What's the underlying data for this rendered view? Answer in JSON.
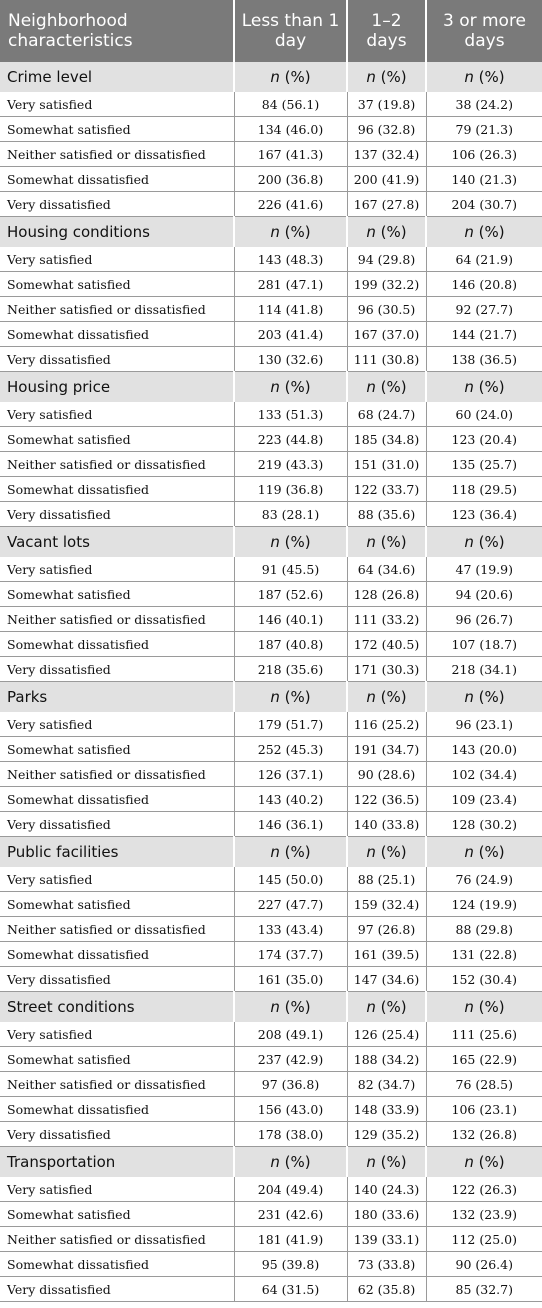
{
  "header": {
    "col0": "Neighborhood characteristics",
    "col1": "Less than 1 day",
    "col2": "1–2 days",
    "col3": "3 or more days"
  },
  "subheader": {
    "n": "n",
    "pct": " (%)"
  },
  "sections": [
    {
      "title": "Crime level",
      "rows": [
        {
          "label": "Very satisfied",
          "v1": "84 (56.1)",
          "v2": "37 (19.8)",
          "v3": "38 (24.2)"
        },
        {
          "label": "Somewhat satisfied",
          "v1": "134 (46.0)",
          "v2": "96 (32.8)",
          "v3": "79 (21.3)"
        },
        {
          "label": "Neither satisfied or dissatisfied",
          "v1": "167 (41.3)",
          "v2": "137 (32.4)",
          "v3": "106 (26.3)"
        },
        {
          "label": "Somewhat dissatisfied",
          "v1": "200 (36.8)",
          "v2": "200 (41.9)",
          "v3": "140 (21.3)"
        },
        {
          "label": "Very dissatisfied",
          "v1": "226 (41.6)",
          "v2": "167 (27.8)",
          "v3": "204 (30.7)"
        }
      ]
    },
    {
      "title": "Housing conditions",
      "rows": [
        {
          "label": "Very satisfied",
          "v1": "143 (48.3)",
          "v2": "94 (29.8)",
          "v3": "64 (21.9)"
        },
        {
          "label": "Somewhat satisfied",
          "v1": "281 (47.1)",
          "v2": "199 (32.2)",
          "v3": "146 (20.8)"
        },
        {
          "label": "Neither satisfied or dissatisfied",
          "v1": "114 (41.8)",
          "v2": "96 (30.5)",
          "v3": "92 (27.7)"
        },
        {
          "label": "Somewhat dissatisfied",
          "v1": "203 (41.4)",
          "v2": "167 (37.0)",
          "v3": "144 (21.7)"
        },
        {
          "label": "Very dissatisfied",
          "v1": "130 (32.6)",
          "v2": "111 (30.8)",
          "v3": "138 (36.5)"
        }
      ]
    },
    {
      "title": "Housing price",
      "rows": [
        {
          "label": "Very satisfied",
          "v1": "133 (51.3)",
          "v2": "68 (24.7)",
          "v3": "60 (24.0)"
        },
        {
          "label": "Somewhat satisfied",
          "v1": "223 (44.8)",
          "v2": "185 (34.8)",
          "v3": "123 (20.4)"
        },
        {
          "label": "Neither satisfied or dissatisfied",
          "v1": "219 (43.3)",
          "v2": "151 (31.0)",
          "v3": "135 (25.7)"
        },
        {
          "label": "Somewhat dissatisfied",
          "v1": "119 (36.8)",
          "v2": "122 (33.7)",
          "v3": "118 (29.5)"
        },
        {
          "label": "Very dissatisfied",
          "v1": "83 (28.1)",
          "v2": "88 (35.6)",
          "v3": "123 (36.4)"
        }
      ]
    },
    {
      "title": "Vacant lots",
      "rows": [
        {
          "label": "Very satisfied",
          "v1": "91 (45.5)",
          "v2": "64 (34.6)",
          "v3": "47 (19.9)"
        },
        {
          "label": "Somewhat satisfied",
          "v1": "187 (52.6)",
          "v2": "128 (26.8)",
          "v3": "94 (20.6)"
        },
        {
          "label": "Neither satisfied or dissatisfied",
          "v1": "146 (40.1)",
          "v2": "111 (33.2)",
          "v3": "96 (26.7)"
        },
        {
          "label": "Somewhat dissatisfied",
          "v1": "187 (40.8)",
          "v2": "172 (40.5)",
          "v3": "107 (18.7)"
        },
        {
          "label": "Very dissatisfied",
          "v1": "218 (35.6)",
          "v2": "171 (30.3)",
          "v3": "218 (34.1)"
        }
      ]
    },
    {
      "title": "Parks",
      "rows": [
        {
          "label": "Very satisfied",
          "v1": "179 (51.7)",
          "v2": "116 (25.2)",
          "v3": "96 (23.1)"
        },
        {
          "label": "Somewhat satisfied",
          "v1": "252 (45.3)",
          "v2": "191 (34.7)",
          "v3": "143 (20.0)"
        },
        {
          "label": "Neither satisfied or dissatisfied",
          "v1": "126 (37.1)",
          "v2": "90 (28.6)",
          "v3": "102 (34.4)"
        },
        {
          "label": "Somewhat dissatisfied",
          "v1": "143 (40.2)",
          "v2": "122 (36.5)",
          "v3": "109 (23.4)"
        },
        {
          "label": "Very dissatisfied",
          "v1": "146 (36.1)",
          "v2": "140 (33.8)",
          "v3": "128 (30.2)"
        }
      ]
    },
    {
      "title": "Public facilities",
      "rows": [
        {
          "label": "Very satisfied",
          "v1": "145 (50.0)",
          "v2": "88 (25.1)",
          "v3": "76 (24.9)"
        },
        {
          "label": "Somewhat satisfied",
          "v1": "227 (47.7)",
          "v2": "159 (32.4)",
          "v3": "124 (19.9)"
        },
        {
          "label": "Neither satisfied or dissatisfied",
          "v1": "133 (43.4)",
          "v2": "97 (26.8)",
          "v3": "88 (29.8)"
        },
        {
          "label": "Somewhat dissatisfied",
          "v1": "174 (37.7)",
          "v2": "161 (39.5)",
          "v3": "131 (22.8)"
        },
        {
          "label": "Very dissatisfied",
          "v1": "161 (35.0)",
          "v2": "147 (34.6)",
          "v3": "152 (30.4)"
        }
      ]
    },
    {
      "title": "Street conditions",
      "rows": [
        {
          "label": "Very satisfied",
          "v1": "208 (49.1)",
          "v2": "126 (25.4)",
          "v3": "111 (25.6)"
        },
        {
          "label": "Somewhat satisfied",
          "v1": "237 (42.9)",
          "v2": "188 (34.2)",
          "v3": "165 (22.9)"
        },
        {
          "label": "Neither satisfied or dissatisfied",
          "v1": "97 (36.8)",
          "v2": "82 (34.7)",
          "v3": "76 (28.5)"
        },
        {
          "label": "Somewhat dissatisfied",
          "v1": "156 (43.0)",
          "v2": "148 (33.9)",
          "v3": "106 (23.1)"
        },
        {
          "label": "Very dissatisfied",
          "v1": "178 (38.0)",
          "v2": "129 (35.2)",
          "v3": "132 (26.8)"
        }
      ]
    },
    {
      "title": "Transportation",
      "rows": [
        {
          "label": "Very satisfied",
          "v1": "204 (49.4)",
          "v2": "140 (24.3)",
          "v3": "122 (26.3)"
        },
        {
          "label": "Somewhat satisfied",
          "v1": "231 (42.6)",
          "v2": "180 (33.6)",
          "v3": "132 (23.9)"
        },
        {
          "label": "Neither satisfied or dissatisfied",
          "v1": "181 (41.9)",
          "v2": "139 (33.1)",
          "v3": "112 (25.0)"
        },
        {
          "label": "Somewhat dissatisfied",
          "v1": "95 (39.8)",
          "v2": "73 (33.8)",
          "v3": "90 (26.4)"
        },
        {
          "label": "Very dissatisfied",
          "v1": "64 (31.5)",
          "v2": "62 (35.8)",
          "v3": "85 (32.7)"
        }
      ]
    }
  ]
}
